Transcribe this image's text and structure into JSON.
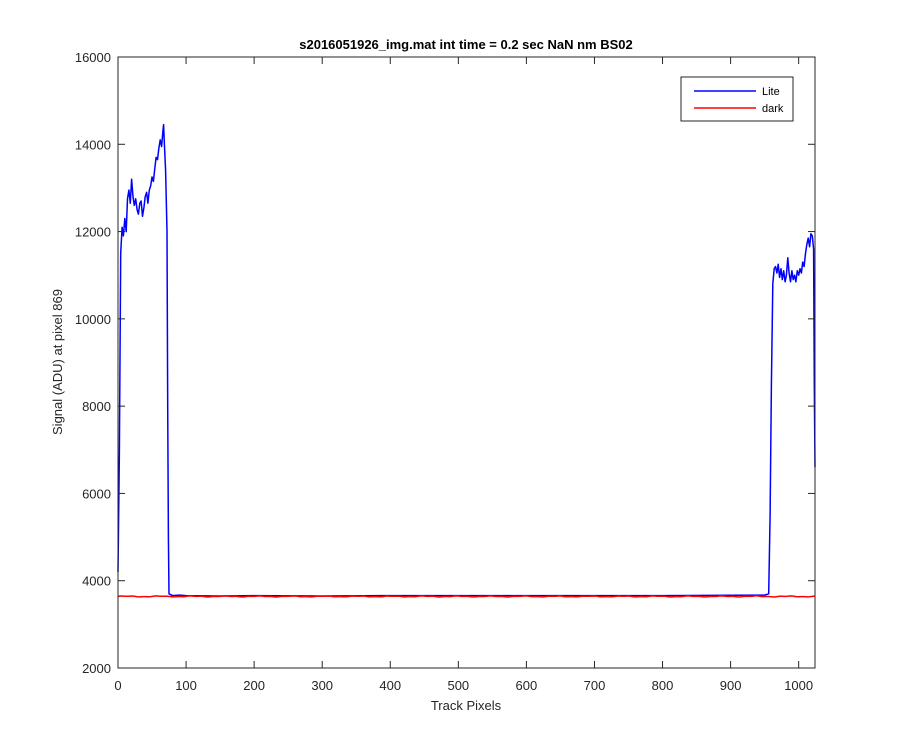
{
  "chart_data": {
    "type": "line",
    "title": "s2016051926_img.mat int time = 0.2 sec  NaN nm BS02",
    "xlabel": "Track Pixels",
    "ylabel": "Signal (ADU) at pixel 869",
    "xlim": [
      0,
      1024
    ],
    "ylim": [
      2000,
      16000
    ],
    "xticks": [
      0,
      100,
      200,
      300,
      400,
      500,
      600,
      700,
      800,
      900,
      1000
    ],
    "yticks": [
      2000,
      4000,
      6000,
      8000,
      10000,
      12000,
      14000,
      16000
    ],
    "grid": false,
    "legend_position": "top-right",
    "series": [
      {
        "name": "Lite",
        "color": "#0000ff",
        "points": [
          [
            0,
            4200
          ],
          [
            2,
            7000
          ],
          [
            4,
            11500
          ],
          [
            6,
            12100
          ],
          [
            8,
            11900
          ],
          [
            10,
            12300
          ],
          [
            12,
            12000
          ],
          [
            14,
            12750
          ],
          [
            16,
            12950
          ],
          [
            18,
            12650
          ],
          [
            20,
            13200
          ],
          [
            22,
            12800
          ],
          [
            24,
            12600
          ],
          [
            26,
            12750
          ],
          [
            28,
            12500
          ],
          [
            30,
            12400
          ],
          [
            32,
            12650
          ],
          [
            34,
            12700
          ],
          [
            36,
            12350
          ],
          [
            38,
            12550
          ],
          [
            40,
            12800
          ],
          [
            42,
            12900
          ],
          [
            44,
            12650
          ],
          [
            46,
            12950
          ],
          [
            48,
            13050
          ],
          [
            50,
            13250
          ],
          [
            52,
            13150
          ],
          [
            54,
            13450
          ],
          [
            56,
            13700
          ],
          [
            58,
            13650
          ],
          [
            60,
            13900
          ],
          [
            62,
            14100
          ],
          [
            64,
            13950
          ],
          [
            66,
            14300
          ],
          [
            67,
            14450
          ],
          [
            68,
            14050
          ],
          [
            70,
            13400
          ],
          [
            72,
            12000
          ],
          [
            73,
            8000
          ],
          [
            74,
            5000
          ],
          [
            75,
            3700
          ],
          [
            80,
            3660
          ],
          [
            90,
            3670
          ],
          [
            100,
            3660
          ],
          [
            150,
            3650
          ],
          [
            200,
            3660
          ],
          [
            300,
            3650
          ],
          [
            400,
            3660
          ],
          [
            500,
            3660
          ],
          [
            600,
            3660
          ],
          [
            700,
            3660
          ],
          [
            800,
            3660
          ],
          [
            900,
            3665
          ],
          [
            950,
            3670
          ],
          [
            956,
            3700
          ],
          [
            958,
            5500
          ],
          [
            960,
            8500
          ],
          [
            962,
            10800
          ],
          [
            964,
            11150
          ],
          [
            966,
            11200
          ],
          [
            968,
            11050
          ],
          [
            970,
            11250
          ],
          [
            972,
            10950
          ],
          [
            974,
            11150
          ],
          [
            976,
            10900
          ],
          [
            978,
            11100
          ],
          [
            980,
            10850
          ],
          [
            982,
            11000
          ],
          [
            984,
            11400
          ],
          [
            986,
            11050
          ],
          [
            988,
            10850
          ],
          [
            990,
            11100
          ],
          [
            992,
            10900
          ],
          [
            994,
            11000
          ],
          [
            996,
            10850
          ],
          [
            998,
            11100
          ],
          [
            1000,
            11000
          ],
          [
            1002,
            11150
          ],
          [
            1004,
            11050
          ],
          [
            1006,
            11300
          ],
          [
            1008,
            11200
          ],
          [
            1010,
            11500
          ],
          [
            1012,
            11700
          ],
          [
            1014,
            11850
          ],
          [
            1016,
            11650
          ],
          [
            1018,
            11950
          ],
          [
            1020,
            11900
          ],
          [
            1022,
            11600
          ],
          [
            1023,
            8500
          ],
          [
            1024,
            6600
          ]
        ]
      },
      {
        "name": "dark",
        "color": "#ff0000",
        "points": [
          [
            0,
            3640
          ],
          [
            1024,
            3640
          ]
        ]
      }
    ]
  }
}
